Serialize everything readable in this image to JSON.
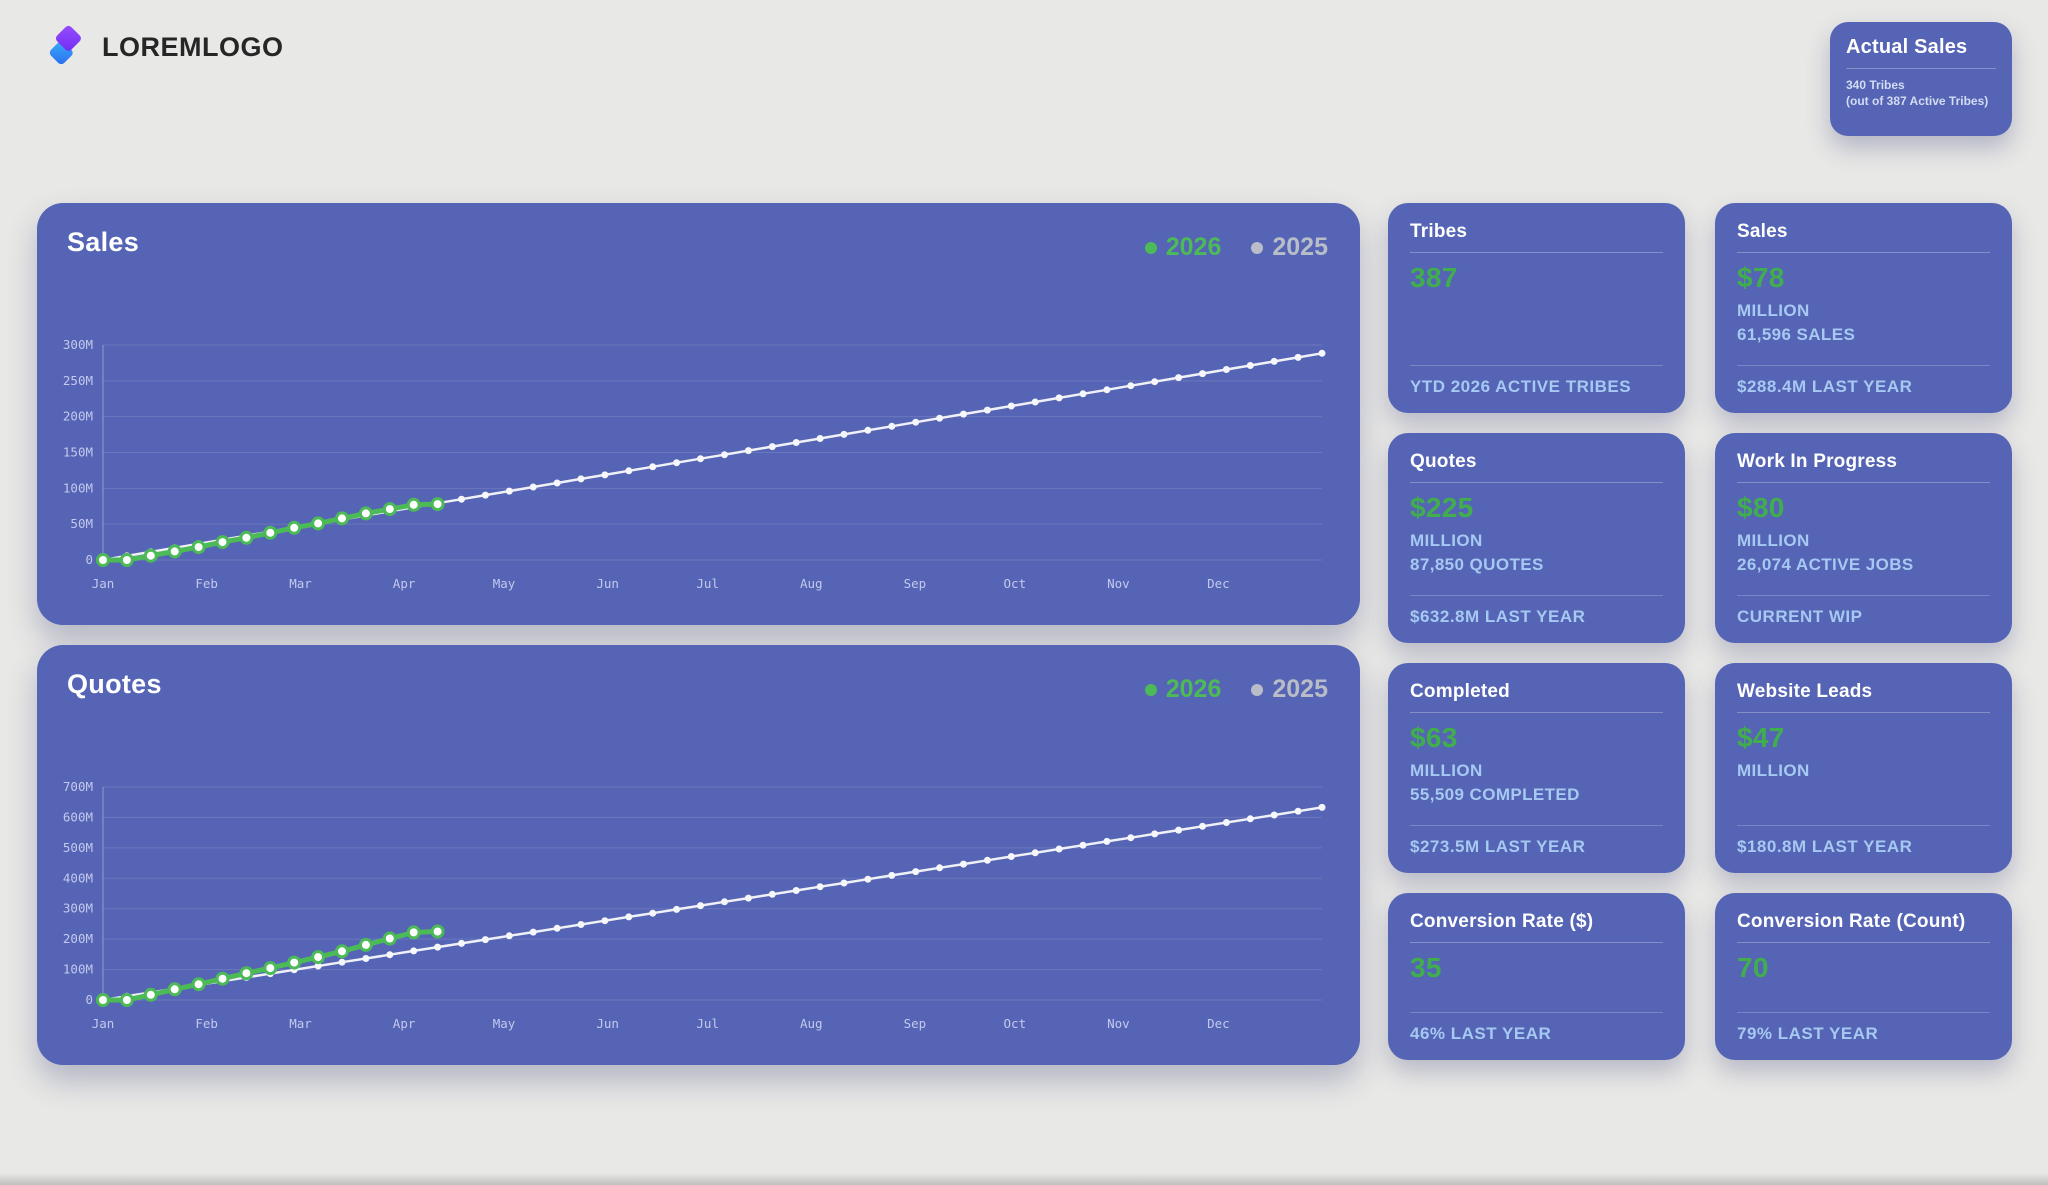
{
  "brand": {
    "name": "LOREMLOGO"
  },
  "actual_sales_card": {
    "title": "Actual Sales",
    "line1": "340 Tribes",
    "line2": "(out of 387 Active Tribes)"
  },
  "colors": {
    "page_background": "#e8e8e6",
    "card_background": "#5564b4",
    "accent_green": "#41ae4d",
    "chart_green": "#4cba57",
    "light_blue_text": "#a6c9f2",
    "legend_gray": "#b9bdc8",
    "line_2025": "#eff1f7",
    "axis_label": "#c3c9ee",
    "logo_purple": "#7c3bf5",
    "logo_blue": "#2f8df5"
  },
  "chart_data": [
    {
      "type": "line",
      "title": "Sales",
      "ylabel": "",
      "xlabel": "",
      "ylim": [
        0,
        300
      ],
      "ytick_labels": [
        "0",
        "50M",
        "100M",
        "150M",
        "200M",
        "250M",
        "300M"
      ],
      "months": [
        "Jan",
        "Feb",
        "Mar",
        "Apr",
        "May",
        "Jun",
        "Jul",
        "Aug",
        "Sep",
        "Oct",
        "Nov",
        "Dec"
      ],
      "weeks": 52,
      "grid": true,
      "legend_position": "top-right",
      "series": [
        {
          "name": "2026",
          "line_color": "#4cba57",
          "legend_color": "#4cba57",
          "line_width": 5,
          "dot_r": 5.5,
          "dot_fill": "#ffffff",
          "dot_stroke": "#4cba57",
          "dot_stroke_width": 3,
          "values": [
            0,
            0,
            6,
            12,
            18,
            25,
            31,
            38,
            45,
            51,
            58,
            65,
            71,
            77,
            78
          ]
        },
        {
          "name": "2025",
          "line_color": "#eff1f7",
          "legend_color": "#b9bdc8",
          "line_width": 2.5,
          "dot_r": 3.5,
          "dot_fill": "#f6f7fa",
          "dot_stroke": "none",
          "dot_stroke_width": 0,
          "values": [
            0,
            5.7,
            11.3,
            17.0,
            22.6,
            28.3,
            33.9,
            39.6,
            45.2,
            50.9,
            56.5,
            62.2,
            67.9,
            73.5,
            79.2,
            84.8,
            90.5,
            96.1,
            101.8,
            107.4,
            113.1,
            118.7,
            124.4,
            130.1,
            135.7,
            141.4,
            147.0,
            152.7,
            158.3,
            164.0,
            169.6,
            175.3,
            181.0,
            186.6,
            192.3,
            197.9,
            203.6,
            209.2,
            214.9,
            220.5,
            226.2,
            231.9,
            237.5,
            243.2,
            248.8,
            254.5,
            260.1,
            265.8,
            271.4,
            277.1,
            282.7,
            288.4
          ]
        }
      ]
    },
    {
      "type": "line",
      "title": "Quotes",
      "ylabel": "",
      "xlabel": "",
      "ylim": [
        0,
        700
      ],
      "ytick_labels": [
        "0",
        "100M",
        "200M",
        "300M",
        "400M",
        "500M",
        "600M",
        "700M"
      ],
      "months": [
        "Jan",
        "Feb",
        "Mar",
        "Apr",
        "May",
        "Jun",
        "Jul",
        "Aug",
        "Sep",
        "Oct",
        "Nov",
        "Dec"
      ],
      "weeks": 52,
      "grid": true,
      "legend_position": "top-right",
      "series": [
        {
          "name": "2026",
          "line_color": "#4cba57",
          "legend_color": "#4cba57",
          "line_width": 5,
          "dot_r": 5.5,
          "dot_fill": "#ffffff",
          "dot_stroke": "#4cba57",
          "dot_stroke_width": 3,
          "values": [
            0,
            0,
            17,
            35,
            52,
            70,
            88,
            105,
            123,
            141,
            160,
            181,
            202,
            222,
            225
          ]
        },
        {
          "name": "2025",
          "line_color": "#eff1f7",
          "legend_color": "#b9bdc8",
          "line_width": 2.5,
          "dot_r": 3.5,
          "dot_fill": "#f6f7fa",
          "dot_stroke": "none",
          "dot_stroke_width": 0,
          "values": [
            0,
            12.4,
            24.8,
            37.2,
            49.6,
            62.0,
            74.4,
            86.9,
            99.3,
            111.7,
            124.1,
            136.5,
            148.9,
            161.3,
            173.7,
            186.1,
            198.5,
            210.9,
            223.3,
            235.7,
            248.2,
            260.6,
            273.0,
            285.4,
            297.8,
            310.2,
            322.6,
            335.0,
            347.4,
            359.8,
            372.2,
            384.6,
            397.0,
            409.5,
            421.9,
            434.3,
            446.7,
            459.1,
            471.5,
            483.9,
            496.3,
            508.7,
            521.1,
            533.5,
            545.9,
            558.4,
            570.8,
            583.2,
            595.6,
            608.0,
            620.4,
            632.8
          ]
        }
      ]
    }
  ],
  "kpi": {
    "cards": [
      {
        "title": "Tribes",
        "value": "387",
        "footer": "YTD 2026 ACTIVE TRIBES"
      },
      {
        "title": "Sales",
        "value": "$78",
        "unit": "MILLION",
        "sub": "61,596 SALES",
        "footer": "$288.4M LAST YEAR"
      },
      {
        "title": "Quotes",
        "value": "$225",
        "unit": "MILLION",
        "sub": "87,850 QUOTES",
        "footer": "$632.8M LAST YEAR"
      },
      {
        "title": "Work In Progress",
        "value": "$80",
        "unit": "MILLION",
        "sub": "26,074 ACTIVE JOBS",
        "footer": "CURRENT WIP"
      },
      {
        "title": "Completed",
        "value": "$63",
        "unit": "MILLION",
        "sub": "55,509 COMPLETED",
        "footer": "$273.5M LAST YEAR"
      },
      {
        "title": "Website Leads",
        "value": "$47",
        "unit": "MILLION",
        "footer": "$180.8M LAST YEAR"
      },
      {
        "title": "Conversion Rate ($)",
        "value": "35",
        "footer": "46% LAST YEAR"
      },
      {
        "title": "Conversion Rate (Count)",
        "value": "70",
        "footer": "79% LAST YEAR"
      }
    ]
  }
}
